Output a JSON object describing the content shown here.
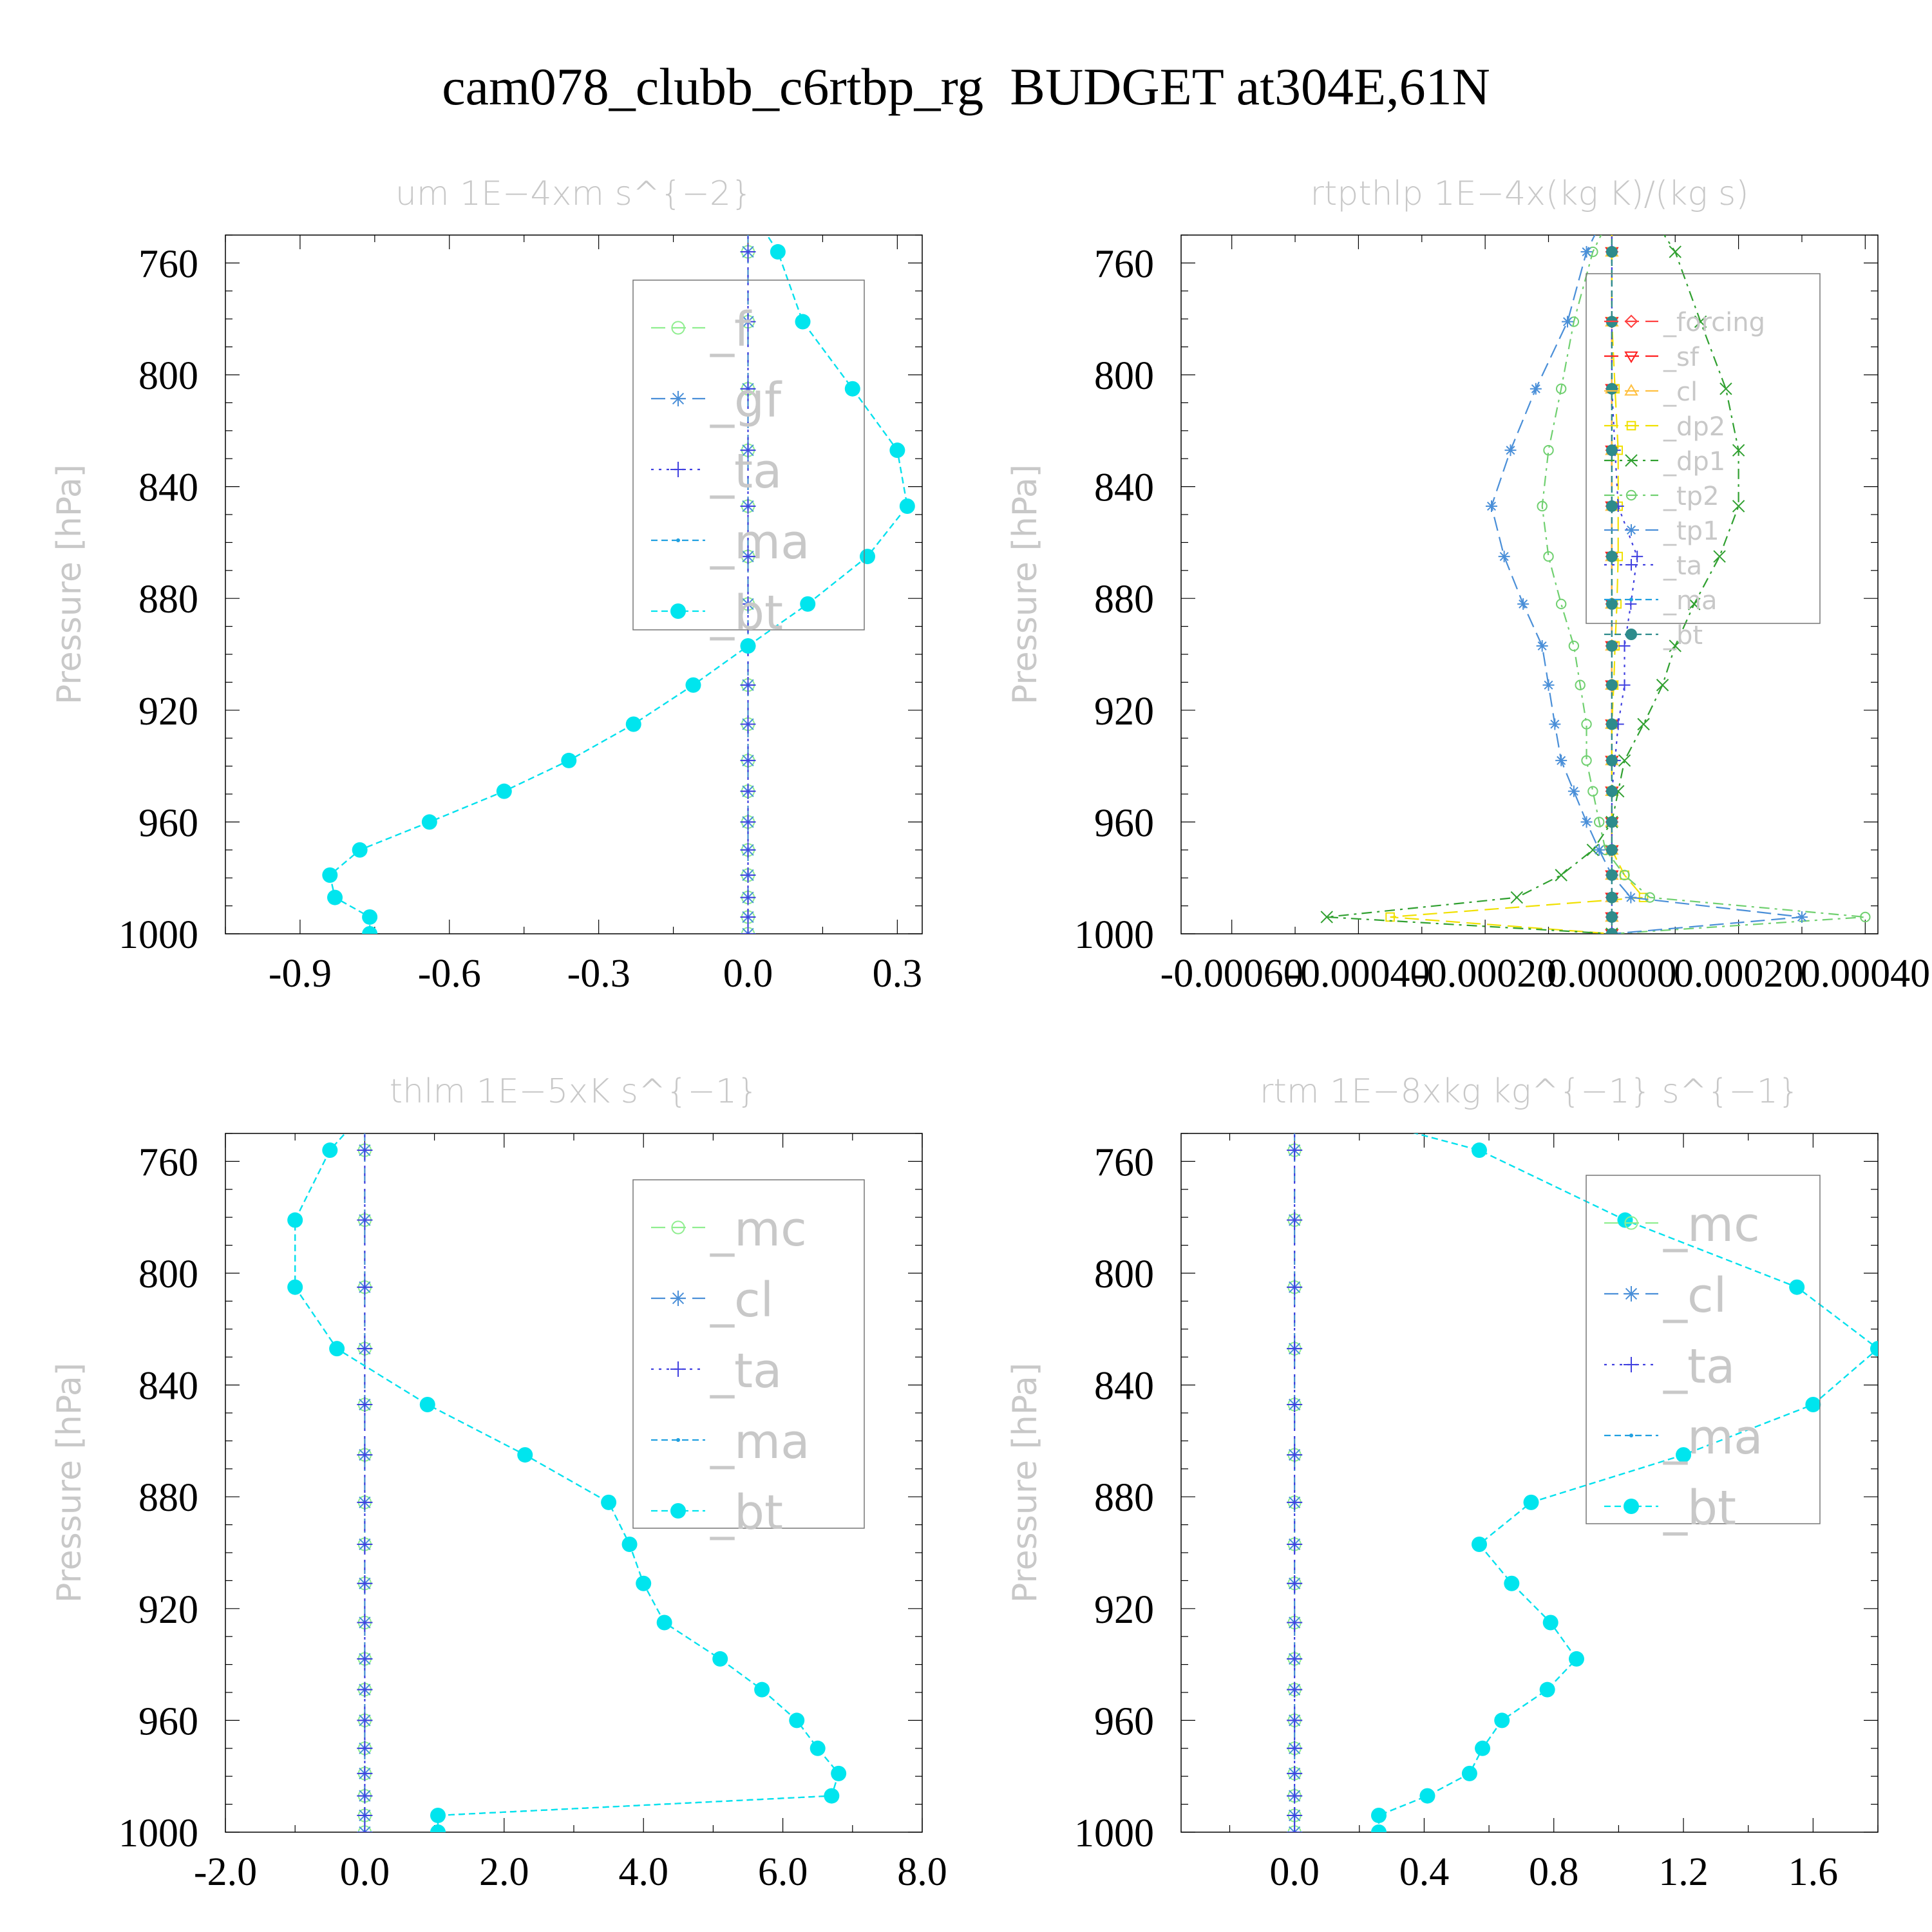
{
  "title": "cam078_clubb_c6rtbp_rg  BUDGET at304E,61N",
  "chart_data": [
    {
      "type": "line",
      "title": "um  1E−4xm s^{−2}",
      "ylabel": "Pressure [hPa]",
      "ylim": [
        750,
        1000
      ],
      "yticks": [
        760,
        800,
        840,
        880,
        920,
        960,
        1000
      ],
      "ytick_labels": [
        "760",
        "800",
        "840",
        "880",
        "920",
        "960",
        "1000"
      ],
      "xlim": [
        -1.05,
        0.35
      ],
      "xticks": [
        -0.9,
        -0.6,
        -0.3,
        0.0,
        0.3
      ],
      "xtick_labels": [
        "-0.9",
        "-0.6",
        "-0.3",
        "0.0",
        "0.3"
      ],
      "y": [
        756,
        781,
        805,
        827,
        847,
        865,
        882,
        897,
        911,
        925,
        938,
        949,
        960,
        970,
        979,
        987,
        994,
        1000
      ],
      "series": [
        {
          "name": "_f",
          "color": "#90ee90",
          "marker": "circle",
          "values": [
            0,
            0,
            0,
            0,
            0,
            0,
            0,
            0,
            0,
            0,
            0,
            0,
            0,
            0,
            0,
            0,
            0,
            0
          ]
        },
        {
          "name": "_gf",
          "color": "#4a8fd8",
          "marker": "star",
          "values": [
            0,
            0,
            0,
            0,
            0,
            0,
            0,
            0,
            0,
            0,
            0,
            0,
            0,
            0,
            0,
            0,
            0,
            0
          ]
        },
        {
          "name": "_ta",
          "color": "#4040e0",
          "marker": "plus",
          "values": [
            0,
            0,
            0,
            0,
            0,
            0,
            0,
            0,
            0,
            0,
            0,
            0,
            0,
            0,
            0,
            0,
            0,
            0
          ]
        },
        {
          "name": "_ma",
          "color": "#20a0e0",
          "marker": "dot",
          "values": [
            0.06,
            0.11,
            0.21,
            0.3,
            0.32,
            0.24,
            0.12,
            0.0,
            -0.11,
            -0.23,
            -0.36,
            -0.49,
            -0.64,
            -0.78,
            -0.84,
            -0.83,
            -0.76,
            -0.76
          ]
        },
        {
          "name": "_bt",
          "color": "#00e5ee",
          "marker": "filled-circle",
          "values": [
            0.06,
            0.11,
            0.21,
            0.3,
            0.32,
            0.24,
            0.12,
            0.0,
            -0.11,
            -0.23,
            -0.36,
            -0.49,
            -0.64,
            -0.78,
            -0.84,
            -0.83,
            -0.76,
            -0.76
          ]
        }
      ],
      "grid": false,
      "legend": "top-right"
    },
    {
      "type": "line",
      "title": "rtpthlp  1E−4x(kg K)/(kg s)",
      "ylabel": "Pressure [hPa]",
      "ylim": [
        750,
        1000
      ],
      "yticks": [
        760,
        800,
        840,
        880,
        920,
        960,
        1000
      ],
      "ytick_labels": [
        "760",
        "800",
        "840",
        "880",
        "920",
        "960",
        "1000"
      ],
      "xlim": [
        -0.00068,
        0.00042
      ],
      "xticks": [
        -0.0006,
        -0.0004,
        -0.0002,
        0.0,
        0.0002,
        0.0004
      ],
      "xtick_labels": [
        "-0.00060",
        "-0.00040",
        "-0.00020",
        "0.00000",
        "0.00020",
        "0.00040"
      ],
      "y": [
        756,
        781,
        805,
        827,
        847,
        865,
        882,
        897,
        911,
        925,
        938,
        949,
        960,
        970,
        979,
        987,
        994,
        1000
      ],
      "series": [
        {
          "name": "_forcing",
          "color": "#ff4040",
          "marker": "diamond",
          "values": [
            0,
            0,
            0,
            0,
            0,
            0,
            0,
            0,
            0,
            0,
            0,
            0,
            0,
            0,
            0,
            0,
            0,
            0
          ]
        },
        {
          "name": "_sf",
          "color": "#ff2020",
          "marker": "triangle-down",
          "values": [
            0,
            0,
            0,
            0,
            0,
            0,
            0,
            0,
            0,
            0,
            0,
            0,
            0,
            0,
            0,
            0,
            0,
            0
          ]
        },
        {
          "name": "_cl",
          "color": "#ffc040",
          "marker": "triangle-up",
          "values": [
            0,
            0,
            0,
            0,
            0,
            0,
            0,
            0,
            0,
            0,
            0,
            0,
            0,
            0,
            0,
            0,
            0,
            0
          ]
        },
        {
          "name": "_dp2",
          "color": "#f0e000",
          "marker": "square",
          "values": [
            0,
            0,
            5e-06,
            1e-05,
            1e-05,
            1e-05,
            8e-06,
            5e-06,
            3e-06,
            0,
            0,
            0,
            0,
            0,
            2e-05,
            5e-05,
            -0.00035,
            0
          ]
        },
        {
          "name": "_dp1",
          "color": "#30a030",
          "marker": "x",
          "values": [
            0.0001,
            0.00014,
            0.00018,
            0.0002,
            0.0002,
            0.00017,
            0.00013,
            0.0001,
            8e-05,
            5e-05,
            2e-05,
            1e-05,
            0,
            -3e-05,
            -8e-05,
            -0.00015,
            -0.00045,
            0
          ]
        },
        {
          "name": "_tp2",
          "color": "#70d070",
          "marker": "circle",
          "values": [
            -3e-05,
            -6e-05,
            -8e-05,
            -0.0001,
            -0.00011,
            -0.0001,
            -8e-05,
            -6e-05,
            -5e-05,
            -4e-05,
            -4e-05,
            -3e-05,
            -2e-05,
            -1e-05,
            2e-05,
            6e-05,
            0.0004,
            0
          ]
        },
        {
          "name": "_tp1",
          "color": "#4a8fd8",
          "marker": "star",
          "values": [
            -4e-05,
            -7e-05,
            -0.00012,
            -0.00016,
            -0.00019,
            -0.00017,
            -0.00014,
            -0.00011,
            -0.0001,
            -9e-05,
            -8e-05,
            -6e-05,
            -4e-05,
            -2e-05,
            0,
            3e-05,
            0.0003,
            0
          ]
        },
        {
          "name": "_ta",
          "color": "#4040e0",
          "marker": "plus",
          "values": [
            0,
            0,
            0,
            5e-06,
            1e-05,
            4e-05,
            3e-05,
            2e-05,
            2e-05,
            1e-05,
            5e-06,
            0,
            0,
            0,
            0,
            0,
            0,
            0
          ]
        },
        {
          "name": "_ma",
          "color": "#20a0e0",
          "marker": "dot",
          "values": [
            0,
            0,
            0,
            0,
            0,
            0,
            0,
            0,
            0,
            0,
            0,
            0,
            0,
            0,
            0,
            0,
            0,
            0
          ]
        },
        {
          "name": "_bt",
          "color": "#2e8b8b",
          "marker": "filled-circle",
          "values": [
            0,
            0,
            0,
            0,
            0,
            0,
            0,
            0,
            0,
            0,
            0,
            0,
            0,
            0,
            0,
            0,
            0,
            0
          ]
        }
      ],
      "grid": false,
      "legend": "top-right"
    },
    {
      "type": "line",
      "title": "thlm  1E−5xK s^{−1}",
      "ylabel": "Pressure [hPa]",
      "ylim": [
        750,
        1000
      ],
      "yticks": [
        760,
        800,
        840,
        880,
        920,
        960,
        1000
      ],
      "ytick_labels": [
        "760",
        "800",
        "840",
        "880",
        "920",
        "960",
        "1000"
      ],
      "xlim": [
        -2.0,
        8.0
      ],
      "xticks": [
        -2.0,
        0.0,
        2.0,
        4.0,
        6.0,
        8.0
      ],
      "xtick_labels": [
        "-2.0",
        "0.0",
        "2.0",
        "4.0",
        "6.0",
        "8.0"
      ],
      "y": [
        756,
        781,
        805,
        827,
        847,
        865,
        882,
        897,
        911,
        925,
        938,
        949,
        960,
        970,
        979,
        987,
        994,
        1000
      ],
      "series": [
        {
          "name": "_mc",
          "color": "#90ee90",
          "marker": "circle",
          "values": [
            0,
            0,
            0,
            0,
            0,
            0,
            0,
            0,
            0,
            0,
            0,
            0,
            0,
            0,
            0,
            0,
            0,
            0
          ]
        },
        {
          "name": "_cl",
          "color": "#4a8fd8",
          "marker": "star",
          "values": [
            0,
            0,
            0,
            0,
            0,
            0,
            0,
            0,
            0,
            0,
            0,
            0,
            0,
            0,
            0,
            0,
            0,
            0
          ]
        },
        {
          "name": "_ta",
          "color": "#4040e0",
          "marker": "plus",
          "values": [
            0,
            0,
            0,
            0,
            0,
            0,
            0,
            0,
            0,
            0,
            0,
            0,
            0,
            0,
            0,
            0,
            0,
            0
          ]
        },
        {
          "name": "_ma",
          "color": "#20a0e0",
          "marker": "dot",
          "values": [
            -0.5,
            -1.0,
            -1.0,
            -0.4,
            0.9,
            2.3,
            3.5,
            3.8,
            4.0,
            4.3,
            5.1,
            5.7,
            6.2,
            6.5,
            6.8,
            6.7,
            1.05,
            1.05
          ]
        },
        {
          "name": "_bt",
          "color": "#00e5ee",
          "marker": "filled-circle",
          "values": [
            -0.5,
            -1.0,
            -1.0,
            -0.4,
            0.9,
            2.3,
            3.5,
            3.8,
            4.0,
            4.3,
            5.1,
            5.7,
            6.2,
            6.5,
            6.8,
            6.7,
            1.05,
            1.05
          ]
        }
      ],
      "grid": false,
      "legend": "top-right"
    },
    {
      "type": "line",
      "title": "rtm  1E−8xkg kg^{−1} s^{−1}",
      "ylabel": "Pressure [hPa]",
      "ylim": [
        750,
        1000
      ],
      "yticks": [
        760,
        800,
        840,
        880,
        920,
        960,
        1000
      ],
      "ytick_labels": [
        "760",
        "800",
        "840",
        "880",
        "920",
        "960",
        "1000"
      ],
      "xlim": [
        -0.35,
        1.8
      ],
      "xticks": [
        0.0,
        0.4,
        0.8,
        1.2,
        1.6
      ],
      "xtick_labels": [
        "0.0",
        "0.4",
        "0.8",
        "1.2",
        "1.6"
      ],
      "y": [
        756,
        781,
        805,
        827,
        847,
        865,
        882,
        897,
        911,
        925,
        938,
        949,
        960,
        970,
        979,
        987,
        994,
        1000
      ],
      "series": [
        {
          "name": "_mc",
          "color": "#90ee90",
          "marker": "circle",
          "values": [
            0,
            0,
            0,
            0,
            0,
            0,
            0,
            0,
            0,
            0,
            0,
            0,
            0,
            0,
            0,
            0,
            0,
            0
          ]
        },
        {
          "name": "_cl",
          "color": "#4a8fd8",
          "marker": "star",
          "values": [
            0,
            0,
            0,
            0,
            0,
            0,
            0,
            0,
            0,
            0,
            0,
            0,
            0,
            0,
            0,
            0,
            0,
            0
          ]
        },
        {
          "name": "_ta",
          "color": "#4040e0",
          "marker": "plus",
          "values": [
            0,
            0,
            0,
            0,
            0,
            0,
            0,
            0,
            0,
            0,
            0,
            0,
            0,
            0,
            0,
            0,
            0,
            0
          ]
        },
        {
          "name": "_ma",
          "color": "#20a0e0",
          "marker": "dot",
          "values": [
            0.57,
            1.02,
            1.55,
            1.8,
            1.6,
            1.2,
            0.73,
            0.57,
            0.67,
            0.79,
            0.87,
            0.78,
            0.64,
            0.58,
            0.54,
            0.41,
            0.26,
            0.26
          ]
        },
        {
          "name": "_bt",
          "color": "#00e5ee",
          "marker": "filled-circle",
          "values": [
            0.57,
            1.02,
            1.55,
            1.8,
            1.6,
            1.2,
            0.73,
            0.57,
            0.67,
            0.79,
            0.87,
            0.78,
            0.64,
            0.58,
            0.54,
            0.41,
            0.26,
            0.26
          ]
        }
      ],
      "grid": false,
      "legend": "top-right"
    }
  ]
}
